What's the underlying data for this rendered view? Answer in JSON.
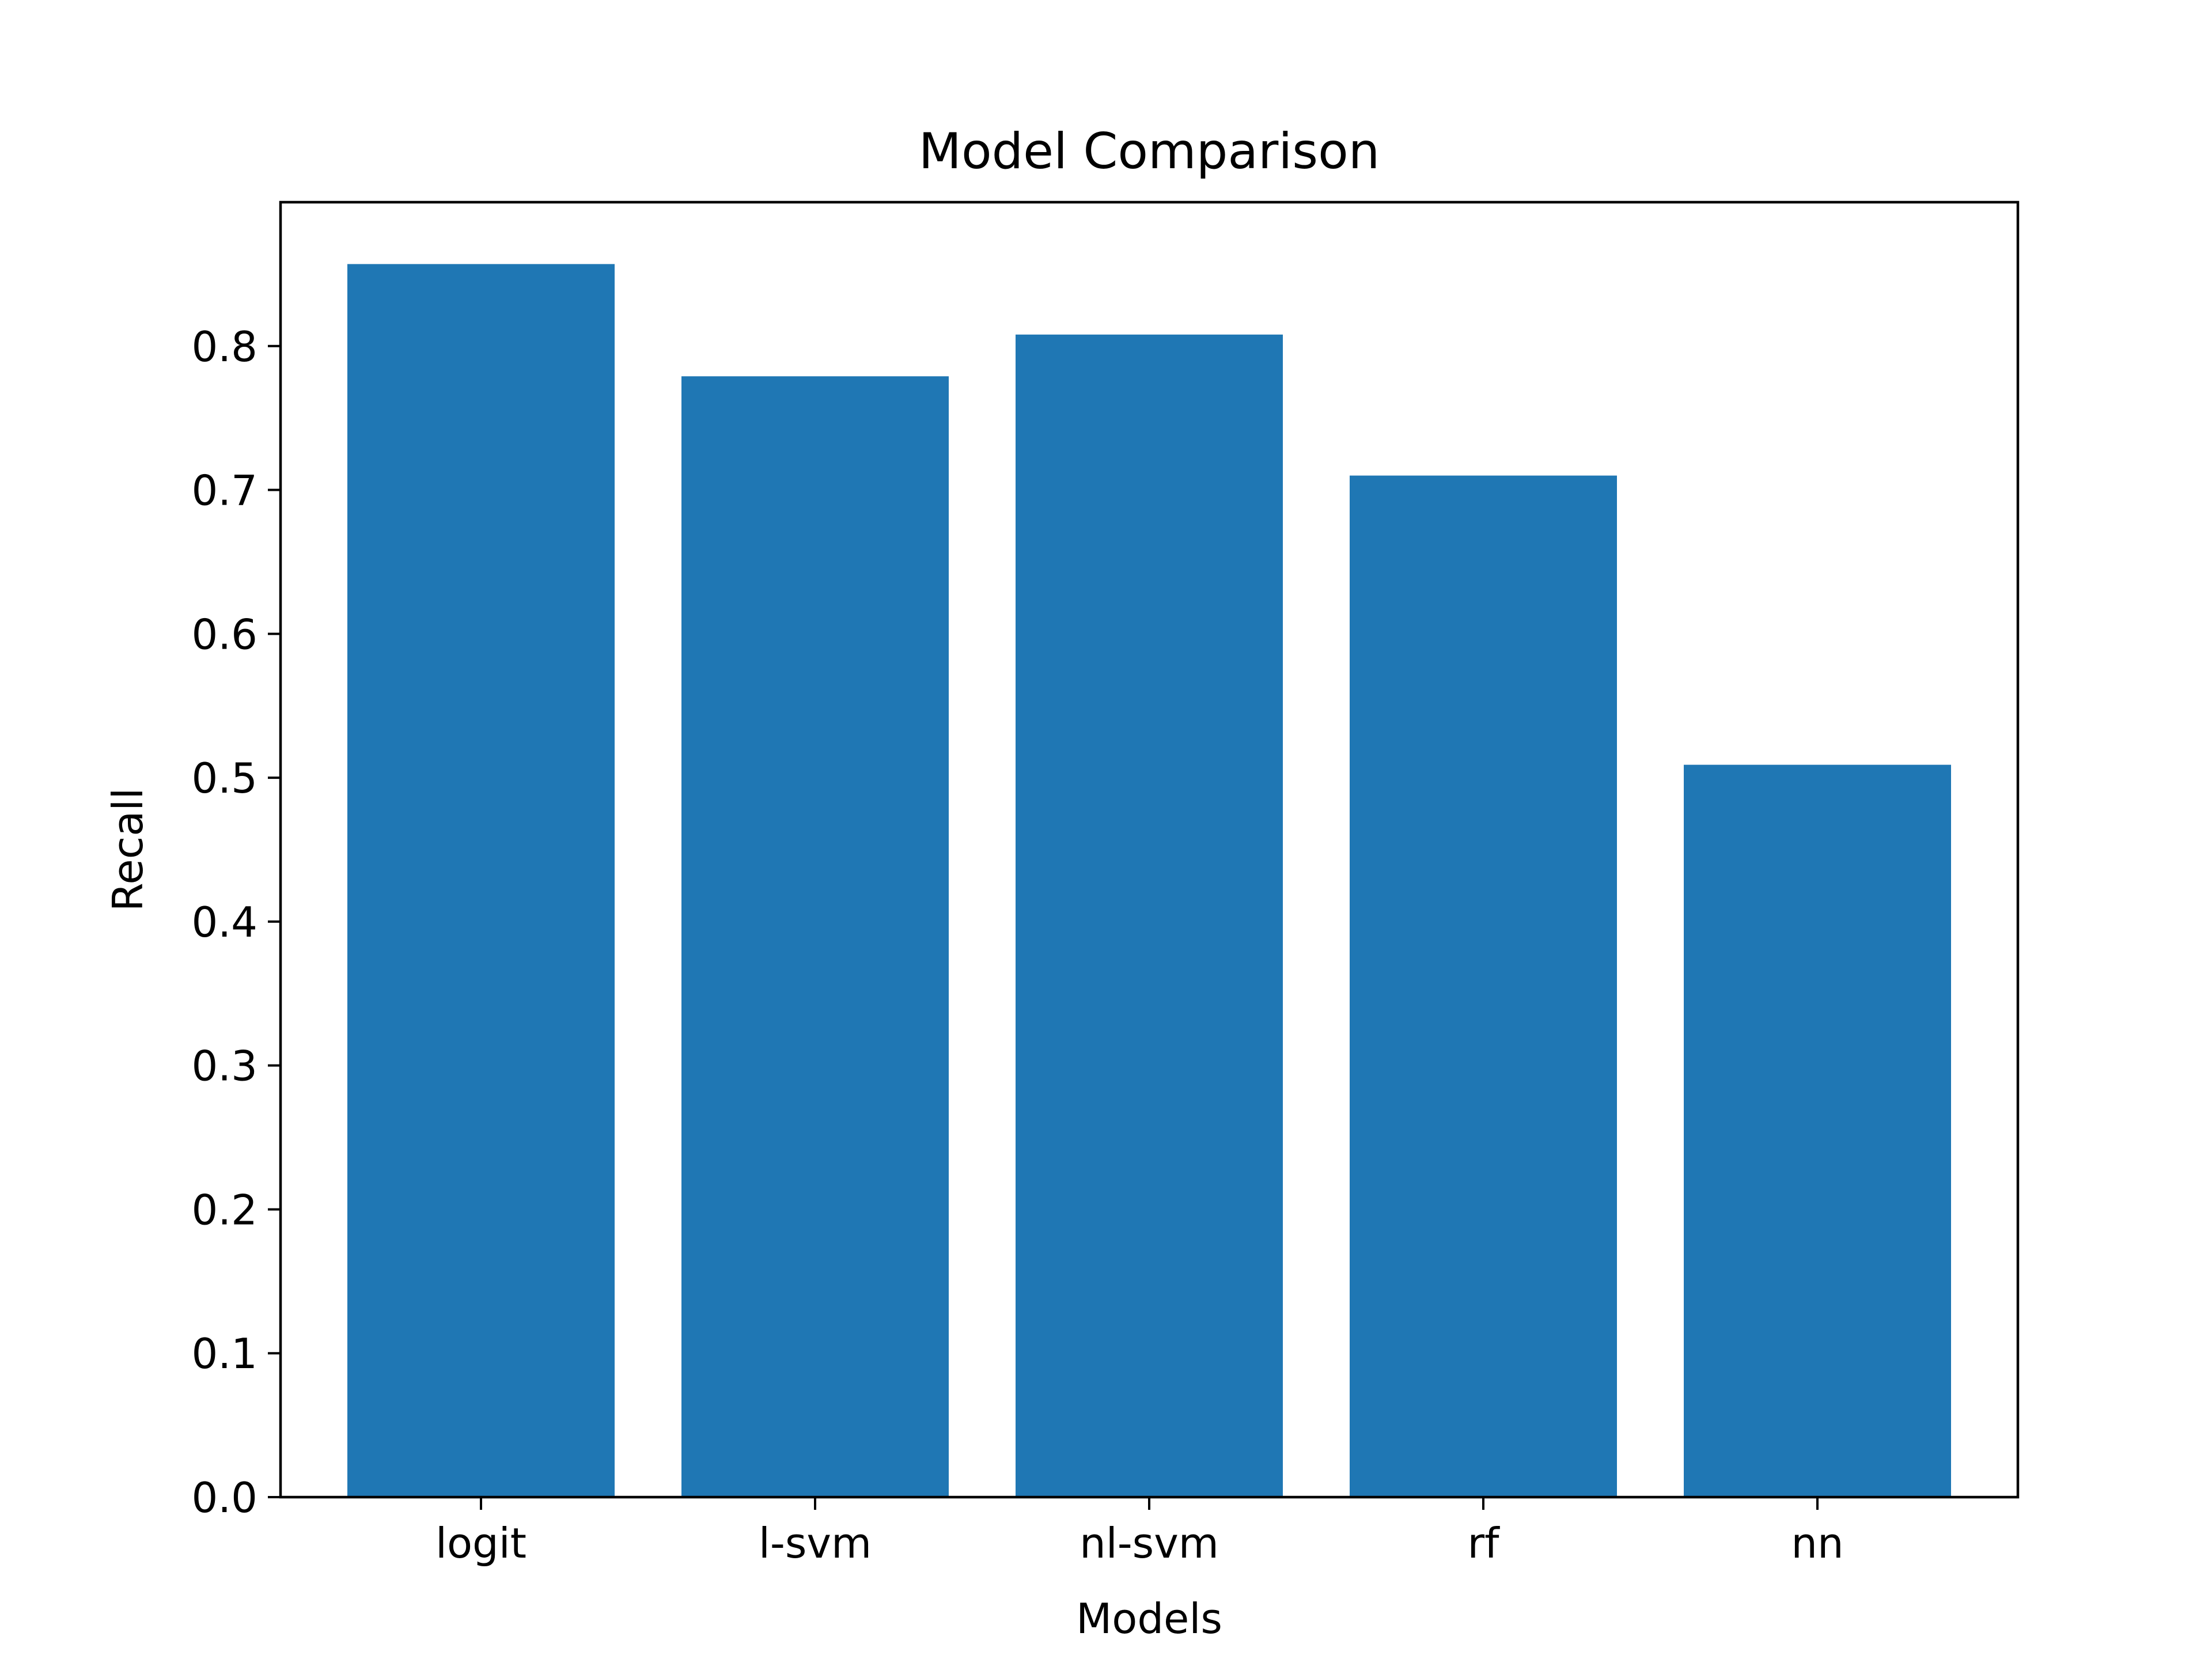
{
  "chart_data": {
    "type": "bar",
    "title": "Model Comparison",
    "xlabel": "Models",
    "ylabel": "Recall",
    "categories": [
      "logit",
      "l-svm",
      "nl-svm",
      "rf",
      "nn"
    ],
    "values": [
      0.857,
      0.779,
      0.808,
      0.71,
      0.509
    ],
    "ylim": [
      0,
      0.9
    ],
    "yticks": [
      "0.0",
      "0.1",
      "0.2",
      "0.3",
      "0.4",
      "0.5",
      "0.6",
      "0.7",
      "0.8"
    ],
    "bar_color": "#1f77b4",
    "grid": false,
    "legend": "none"
  }
}
